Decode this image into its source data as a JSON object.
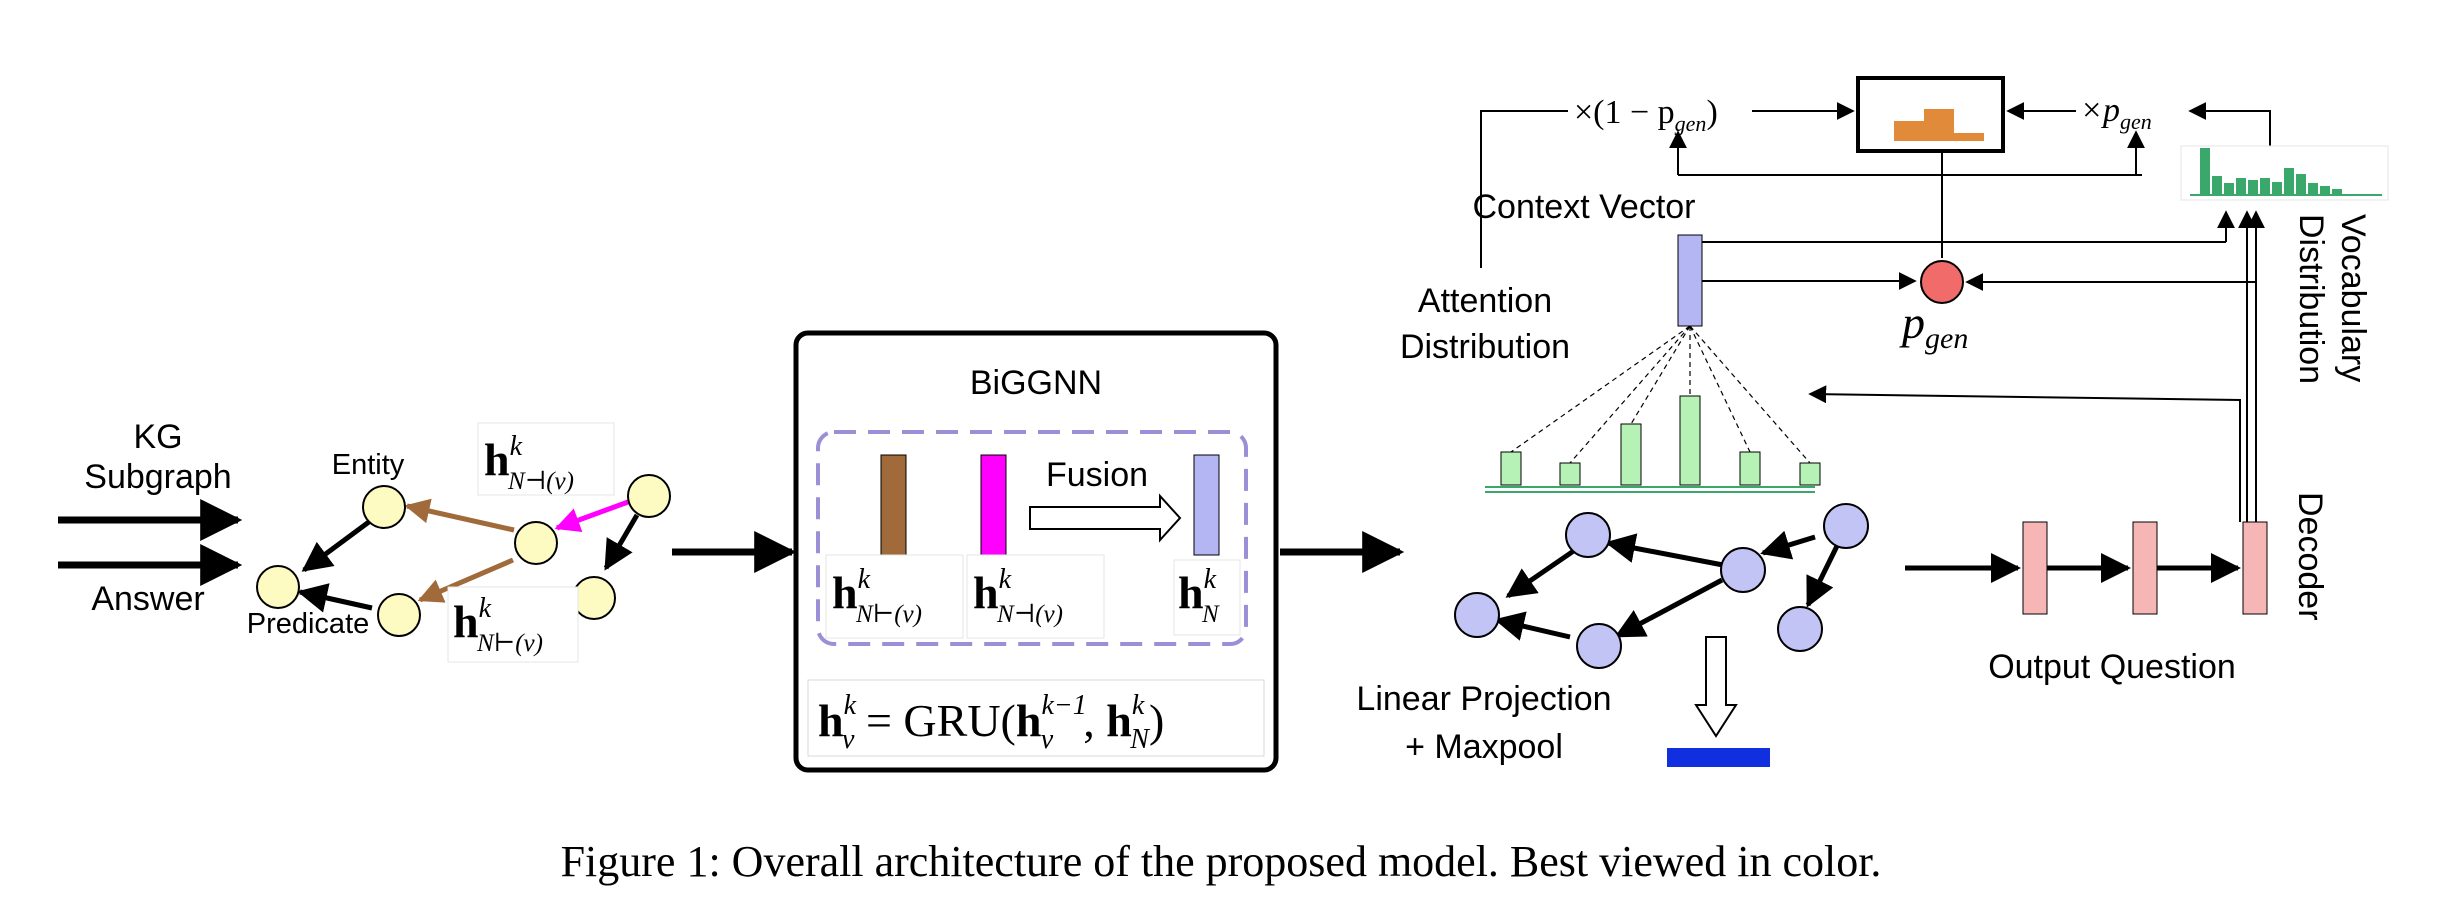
{
  "figure": {
    "caption": "Figure 1: Overall architecture of the proposed model. Best viewed in color."
  },
  "inputs": {
    "kg_line1": "KG",
    "kg_line2": "Subgraph",
    "answer": "Answer"
  },
  "graph": {
    "entity": "Entity",
    "predicate": "Predicate",
    "h_backward": {
      "base": "h",
      "sup": "k",
      "sub": "N⊣(v)"
    },
    "h_forward": {
      "base": "h",
      "sup": "k",
      "sub": "N⊢(v)"
    }
  },
  "biggnn": {
    "title": "BiGGNN",
    "fusion": "Fusion",
    "h_forward": {
      "base": "h",
      "sup": "k",
      "sub": "N⊢(v)"
    },
    "h_backward": {
      "base": "h",
      "sup": "k",
      "sub": "N⊣(v)"
    },
    "h_fused": {
      "base": "h",
      "sup": "k",
      "sub": "N"
    },
    "gru": {
      "lhs_base": "h",
      "lhs_sup": "k",
      "lhs_sub": "v",
      "eq": " = GRU(",
      "a_base": "h",
      "a_sup": "k−1",
      "a_sub": "v",
      "comma": ", ",
      "b_base": "h",
      "b_sup": "k",
      "b_sub": "N",
      "close": ")"
    }
  },
  "decoder_side": {
    "times_one_minus": "×(1 − p",
    "gen_sub": "gen",
    "close_paren": ")",
    "times_p": "×p",
    "context_vector": "Context Vector",
    "attention_line1": "Attention",
    "attention_line2": "Distribution",
    "p_gen": "p",
    "vocab_line1": "Vocabulary",
    "vocab_line2": "Distribution",
    "decoder": "Decoder",
    "output_question": "Output Question",
    "linear_line1": "Linear Projection",
    "linear_line2": "+ Maxpool"
  },
  "colors": {
    "node_yellow": "#fdfbc2",
    "brown": "#a06a3a",
    "magenta": "#ff00ff",
    "lavender": "#b4b6f3",
    "dashed_border": "#9b8fd6",
    "pink": "#f6b6b6",
    "red_circle": "#f26b6b",
    "green_bar": "#b6f2b6",
    "vocab_green": "#3aa86b",
    "orange": "#e08a3a",
    "blue_bar": "#1030e0",
    "node_blue": "#c2c4f6"
  }
}
